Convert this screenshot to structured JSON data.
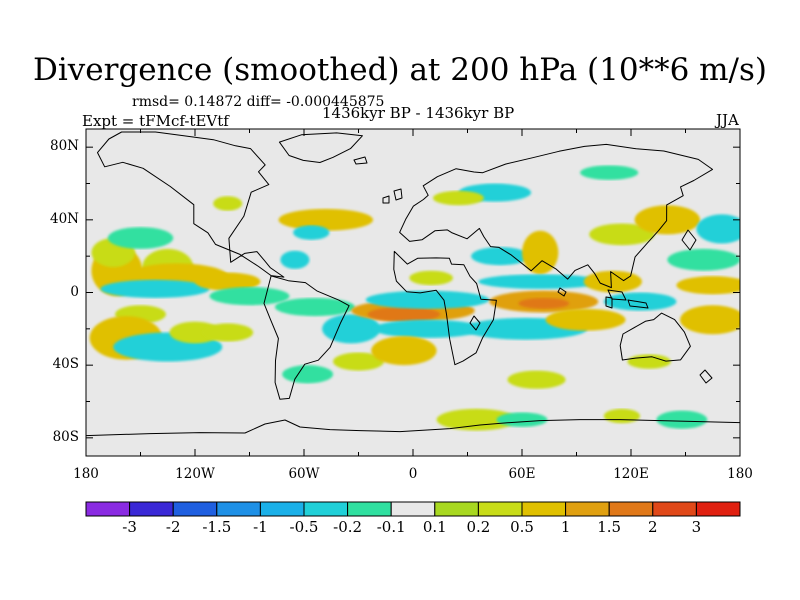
{
  "header": {
    "title": "Divergence (smoothed) at 200 hPa (10**6 m/s)",
    "stats": "rmsd= 0.14872 diff= -0.000445875",
    "experiment": "Expt = tFMcf-tEVtf",
    "period": "1436kyr BP - 1436kyr BP",
    "season": "JJA"
  },
  "axes": {
    "lat_labels": [
      {
        "text": "80N",
        "lat": 80
      },
      {
        "text": "40N",
        "lat": 40
      },
      {
        "text": "0",
        "lat": 0
      },
      {
        "text": "40S",
        "lat": -40
      },
      {
        "text": "80S",
        "lat": -80
      }
    ],
    "lon_labels": [
      {
        "text": "180",
        "lon": -180
      },
      {
        "text": "120W",
        "lon": -120
      },
      {
        "text": "60W",
        "lon": -60
      },
      {
        "text": "0",
        "lon": 0
      },
      {
        "text": "60E",
        "lon": 60
      },
      {
        "text": "120E",
        "lon": 120
      },
      {
        "text": "180",
        "lon": 180
      }
    ],
    "lon_range": [
      -180,
      180
    ],
    "lat_range": [
      -90,
      90
    ]
  },
  "colorbar": {
    "colors": [
      "#8a2be2",
      "#3a28d6",
      "#1f5fe0",
      "#1e90e6",
      "#1bb0e8",
      "#20d0d8",
      "#30e0a0",
      "#e8e8e8",
      "#a8d820",
      "#c8dc18",
      "#e0c000",
      "#e0a010",
      "#e07818",
      "#e04818",
      "#e02010"
    ],
    "labels": [
      "-3",
      "-2",
      "-1.5",
      "-1",
      "-0.5",
      "-0.2",
      "-0.1",
      "0.1",
      "0.2",
      "0.5",
      "1",
      "1.5",
      "2",
      "3"
    ]
  },
  "chart_data": {
    "type": "contour-map",
    "variable": "Divergence (smoothed) at 200 hPa",
    "units": "10**6 m/s",
    "levels": [
      -3,
      -2,
      -1.5,
      -1,
      -0.5,
      -0.2,
      -0.1,
      0.1,
      0.2,
      0.5,
      1,
      1.5,
      2,
      3
    ],
    "rmsd": 0.14872,
    "diff": -0.000445875,
    "anomaly_regions": [
      {
        "lon": -163,
        "lat": 12,
        "rx": 14,
        "ry": 14,
        "value": 0.5
      },
      {
        "lon": -165,
        "lat": 22,
        "rx": 12,
        "ry": 8,
        "value": 0.2
      },
      {
        "lon": -150,
        "lat": 30,
        "rx": 18,
        "ry": 6,
        "value": -0.2
      },
      {
        "lon": -135,
        "lat": 14,
        "rx": 14,
        "ry": 10,
        "value": 0.2
      },
      {
        "lon": -130,
        "lat": 9,
        "rx": 28,
        "ry": 7,
        "value": 0.5
      },
      {
        "lon": -142,
        "lat": 2,
        "rx": 30,
        "ry": 5,
        "value": -0.5
      },
      {
        "lon": -150,
        "lat": -12,
        "rx": 14,
        "ry": 5,
        "value": 0.2
      },
      {
        "lon": -158,
        "lat": -25,
        "rx": 20,
        "ry": 12,
        "value": 0.5
      },
      {
        "lon": -135,
        "lat": -30,
        "rx": 30,
        "ry": 8,
        "value": -0.5
      },
      {
        "lon": -120,
        "lat": -22,
        "rx": 14,
        "ry": 6,
        "value": 0.2
      },
      {
        "lon": -102,
        "lat": 6,
        "rx": 18,
        "ry": 5,
        "value": 0.5
      },
      {
        "lon": -90,
        "lat": -2,
        "rx": 22,
        "ry": 5,
        "value": -0.2
      },
      {
        "lon": -102,
        "lat": -22,
        "rx": 14,
        "ry": 5,
        "value": 0.2
      },
      {
        "lon": -48,
        "lat": 40,
        "rx": 26,
        "ry": 6,
        "value": 0.5
      },
      {
        "lon": -56,
        "lat": 33,
        "rx": 10,
        "ry": 4,
        "value": -0.5
      },
      {
        "lon": -65,
        "lat": 18,
        "rx": 8,
        "ry": 5,
        "value": -0.5
      },
      {
        "lon": -54,
        "lat": -8,
        "rx": 22,
        "ry": 5,
        "value": -0.2
      },
      {
        "lon": -34,
        "lat": -20,
        "rx": 16,
        "ry": 8,
        "value": -0.5
      },
      {
        "lon": -58,
        "lat": -45,
        "rx": 14,
        "ry": 5,
        "value": -0.2
      },
      {
        "lon": -30,
        "lat": -38,
        "rx": 14,
        "ry": 5,
        "value": 0.2
      },
      {
        "lon": 0,
        "lat": -10,
        "rx": 34,
        "ry": 6,
        "value": 1.0
      },
      {
        "lon": -5,
        "lat": -12,
        "rx": 20,
        "ry": 4,
        "value": 1.5
      },
      {
        "lon": 8,
        "lat": -4,
        "rx": 34,
        "ry": 5,
        "value": -0.5
      },
      {
        "lon": 8,
        "lat": -20,
        "rx": 30,
        "ry": 5,
        "value": -0.5
      },
      {
        "lon": -5,
        "lat": -32,
        "rx": 18,
        "ry": 8,
        "value": 0.5
      },
      {
        "lon": 10,
        "lat": 8,
        "rx": 12,
        "ry": 4,
        "value": 0.2
      },
      {
        "lon": 45,
        "lat": 55,
        "rx": 20,
        "ry": 5,
        "value": -0.5
      },
      {
        "lon": 25,
        "lat": 52,
        "rx": 14,
        "ry": 4,
        "value": 0.2
      },
      {
        "lon": 48,
        "lat": 20,
        "rx": 16,
        "ry": 5,
        "value": -0.5
      },
      {
        "lon": 70,
        "lat": 22,
        "rx": 10,
        "ry": 12,
        "value": 0.5
      },
      {
        "lon": 72,
        "lat": -5,
        "rx": 30,
        "ry": 6,
        "value": 1.0
      },
      {
        "lon": 72,
        "lat": -6,
        "rx": 14,
        "ry": 3,
        "value": 1.5
      },
      {
        "lon": 70,
        "lat": 6,
        "rx": 34,
        "ry": 4,
        "value": -0.5
      },
      {
        "lon": 62,
        "lat": -20,
        "rx": 34,
        "ry": 6,
        "value": -0.5
      },
      {
        "lon": 95,
        "lat": -15,
        "rx": 22,
        "ry": 6,
        "value": 0.5
      },
      {
        "lon": 110,
        "lat": 6,
        "rx": 16,
        "ry": 6,
        "value": 0.5
      },
      {
        "lon": 125,
        "lat": -5,
        "rx": 20,
        "ry": 5,
        "value": -0.5
      },
      {
        "lon": 115,
        "lat": 32,
        "rx": 18,
        "ry": 6,
        "value": 0.2
      },
      {
        "lon": 140,
        "lat": 40,
        "rx": 18,
        "ry": 8,
        "value": 0.5
      },
      {
        "lon": 160,
        "lat": 18,
        "rx": 20,
        "ry": 6,
        "value": -0.2
      },
      {
        "lon": 165,
        "lat": 4,
        "rx": 20,
        "ry": 5,
        "value": 0.5
      },
      {
        "lon": 165,
        "lat": -15,
        "rx": 18,
        "ry": 8,
        "value": 0.5
      },
      {
        "lon": 170,
        "lat": 35,
        "rx": 14,
        "ry": 8,
        "value": -0.5
      },
      {
        "lon": 108,
        "lat": 66,
        "rx": 16,
        "ry": 4,
        "value": -0.2
      },
      {
        "lon": 130,
        "lat": -38,
        "rx": 12,
        "ry": 4,
        "value": 0.2
      },
      {
        "lon": 68,
        "lat": -48,
        "rx": 16,
        "ry": 5,
        "value": 0.2
      },
      {
        "lon": 35,
        "lat": -70,
        "rx": 22,
        "ry": 6,
        "value": 0.2
      },
      {
        "lon": 60,
        "lat": -70,
        "rx": 14,
        "ry": 4,
        "value": -0.2
      },
      {
        "lon": 115,
        "lat": -68,
        "rx": 10,
        "ry": 4,
        "value": 0.2
      },
      {
        "lon": 148,
        "lat": -70,
        "rx": 14,
        "ry": 5,
        "value": -0.2
      },
      {
        "lon": -102,
        "lat": 49,
        "rx": 8,
        "ry": 4,
        "value": 0.2
      }
    ]
  }
}
